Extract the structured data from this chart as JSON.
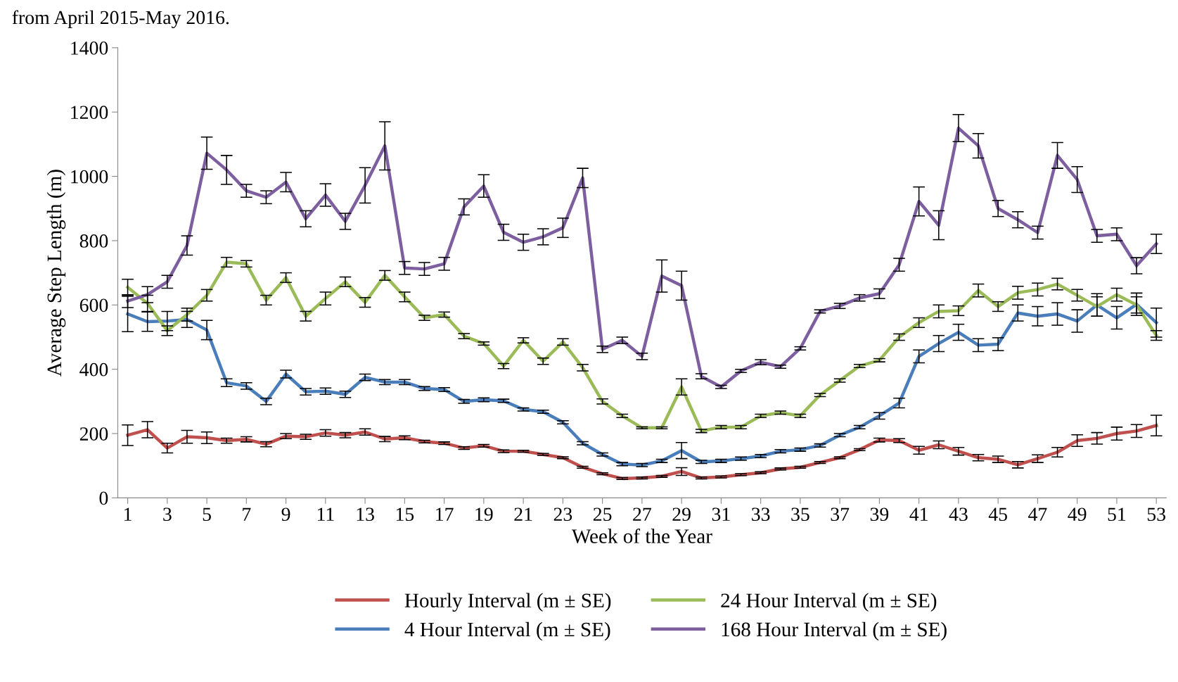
{
  "chart_data": {
    "type": "line",
    "xlabel": "Week of the Year",
    "ylabel": "Average Step Length (m)",
    "annotations": [
      "from April 2015-May 2016."
    ],
    "x": [
      1,
      2,
      3,
      4,
      5,
      6,
      7,
      8,
      9,
      10,
      11,
      12,
      13,
      14,
      15,
      16,
      17,
      18,
      19,
      20,
      21,
      22,
      23,
      24,
      25,
      26,
      27,
      28,
      29,
      30,
      31,
      32,
      33,
      34,
      35,
      36,
      37,
      38,
      39,
      40,
      41,
      42,
      43,
      44,
      45,
      46,
      47,
      48,
      49,
      50,
      51,
      52,
      53
    ],
    "xlim": [
      0.5,
      53.5
    ],
    "xticks": [
      1,
      3,
      5,
      7,
      9,
      11,
      13,
      15,
      17,
      19,
      21,
      23,
      25,
      27,
      29,
      31,
      33,
      35,
      37,
      39,
      41,
      43,
      45,
      47,
      49,
      51,
      53
    ],
    "ylim": [
      0,
      1400
    ],
    "yticks": [
      0,
      200,
      400,
      600,
      800,
      1000,
      1200,
      1400
    ],
    "grid": false,
    "legend": "bottom",
    "marker": "none",
    "line_style": "solid",
    "series": [
      {
        "name": "Hourly Interval (m ± SE)",
        "color": "#c0504d",
        "values": [
          195,
          212,
          155,
          190,
          187,
          178,
          182,
          167,
          192,
          190,
          202,
          195,
          205,
          183,
          187,
          175,
          170,
          155,
          162,
          145,
          145,
          135,
          125,
          95,
          75,
          60,
          62,
          67,
          82,
          62,
          65,
          72,
          78,
          90,
          95,
          110,
          125,
          150,
          180,
          178,
          148,
          165,
          145,
          125,
          120,
          103,
          122,
          142,
          178,
          185,
          200,
          208,
          225
        ],
        "errors": [
          32,
          25,
          15,
          20,
          18,
          8,
          8,
          8,
          8,
          8,
          10,
          8,
          10,
          8,
          6,
          4,
          4,
          4,
          4,
          4,
          3,
          3,
          3,
          3,
          3,
          3,
          3,
          3,
          12,
          3,
          3,
          3,
          3,
          3,
          3,
          3,
          3,
          3,
          6,
          6,
          12,
          12,
          12,
          10,
          10,
          10,
          12,
          15,
          18,
          18,
          20,
          20,
          32
        ]
      },
      {
        "name": "4 Hour Interval (m ± SE)",
        "color": "#4a7ebb",
        "values": [
          572,
          548,
          550,
          555,
          522,
          358,
          348,
          300,
          385,
          330,
          332,
          322,
          375,
          360,
          360,
          340,
          337,
          300,
          305,
          302,
          275,
          268,
          235,
          170,
          135,
          105,
          102,
          115,
          147,
          112,
          115,
          122,
          130,
          145,
          150,
          163,
          195,
          220,
          255,
          295,
          440,
          480,
          515,
          475,
          478,
          575,
          565,
          572,
          550,
          600,
          560,
          602,
          545
        ],
        "errors": [
          55,
          30,
          30,
          25,
          30,
          12,
          10,
          10,
          12,
          10,
          10,
          10,
          10,
          8,
          8,
          6,
          6,
          6,
          6,
          5,
          5,
          5,
          5,
          5,
          5,
          5,
          5,
          5,
          25,
          5,
          5,
          5,
          5,
          5,
          5,
          5,
          5,
          5,
          10,
          15,
          20,
          25,
          25,
          20,
          20,
          25,
          30,
          35,
          35,
          35,
          35,
          35,
          45
        ]
      },
      {
        "name": "24 Hour Interval (m ± SE)",
        "color": "#9bbb59",
        "values": [
          655,
          605,
          520,
          570,
          630,
          733,
          728,
          615,
          685,
          565,
          620,
          672,
          608,
          692,
          625,
          560,
          570,
          503,
          480,
          410,
          490,
          425,
          485,
          405,
          300,
          255,
          218,
          218,
          345,
          208,
          220,
          220,
          255,
          265,
          255,
          320,
          365,
          410,
          428,
          500,
          545,
          580,
          582,
          645,
          595,
          638,
          648,
          665,
          630,
          595,
          632,
          600,
          505
        ],
        "errors": [
          25,
          25,
          15,
          20,
          18,
          15,
          10,
          15,
          15,
          15,
          20,
          15,
          15,
          15,
          15,
          8,
          8,
          8,
          5,
          8,
          8,
          10,
          10,
          10,
          8,
          5,
          3,
          3,
          25,
          5,
          5,
          5,
          5,
          5,
          5,
          5,
          5,
          5,
          5,
          10,
          15,
          20,
          15,
          20,
          15,
          20,
          20,
          18,
          18,
          30,
          20,
          25,
          15
        ]
      },
      {
        "name": "168 Hour Interval (m ± SE)",
        "color": "#7d5fa0",
        "values": [
          612,
          632,
          672,
          785,
          1072,
          1020,
          955,
          935,
          982,
          868,
          942,
          860,
          972,
          1095,
          715,
          712,
          728,
          905,
          970,
          826,
          795,
          812,
          840,
          995,
          462,
          490,
          440,
          690,
          660,
          378,
          345,
          395,
          422,
          408,
          465,
          580,
          597,
          622,
          635,
          725,
          922,
          848,
          1150,
          1095,
          900,
          865,
          825,
          1065,
          990,
          815,
          820,
          722,
          790
        ],
        "errors": [
          20,
          25,
          20,
          30,
          50,
          45,
          20,
          20,
          30,
          25,
          35,
          25,
          55,
          75,
          20,
          20,
          20,
          25,
          35,
          25,
          25,
          25,
          30,
          30,
          10,
          10,
          10,
          50,
          45,
          8,
          5,
          5,
          8,
          5,
          5,
          5,
          8,
          10,
          15,
          20,
          45,
          45,
          42,
          38,
          25,
          25,
          20,
          40,
          40,
          20,
          20,
          25,
          30
        ]
      }
    ]
  }
}
